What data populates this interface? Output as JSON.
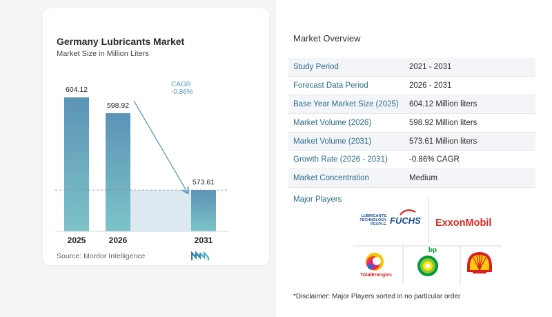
{
  "chart_data": {
    "type": "bar",
    "title": "Germany Lubricants Market",
    "subtitle": "Market Size in Million Liters",
    "categories": [
      "2025",
      "2026",
      "2031"
    ],
    "values": [
      604.12,
      598.92,
      573.61
    ],
    "value_labels": [
      "604.12",
      "598.92",
      "573.61"
    ],
    "annotation": {
      "label": "CAGR",
      "value": "-0.86%"
    },
    "colors": {
      "bar_top": "#5b93b6",
      "bar_bottom": "#7dc3c9",
      "band": "#dde9f1",
      "cagr": "#5a98bd"
    }
  },
  "source": "Source: Mordor Intelligence",
  "overview": {
    "title": "Market Overview",
    "rows": [
      {
        "label": "Study Period",
        "value": "2021 - 2031"
      },
      {
        "label": "Forecast Data Period",
        "value": "2026 - 2031"
      },
      {
        "label": "Base Year Market Size (2025)",
        "value": "604.12 Million liters"
      },
      {
        "label": "Market Volume (2026)",
        "value": "598.92 Million liters"
      },
      {
        "label": "Market Volume (2031)",
        "value": "573.61 Million liters"
      },
      {
        "label": "Growth Rate (2026 - 2031)",
        "value": "-0.86% CAGR"
      },
      {
        "label": "Market Concentration",
        "value": "Medium"
      }
    ]
  },
  "players": {
    "title": "Major Players",
    "logos": {
      "fuchs_tagline_1": "LUBRICANTS.",
      "fuchs_tagline_2": "TECHNOLOGY.",
      "fuchs_tagline_3": "PEOPLE.",
      "fuchs": "FUCHS",
      "exxon": "ExxonMobil",
      "total": "TotalEnergies",
      "bp": "bp"
    }
  },
  "disclaimer": "*Disclaimer: Major Players sorted in no particular order"
}
